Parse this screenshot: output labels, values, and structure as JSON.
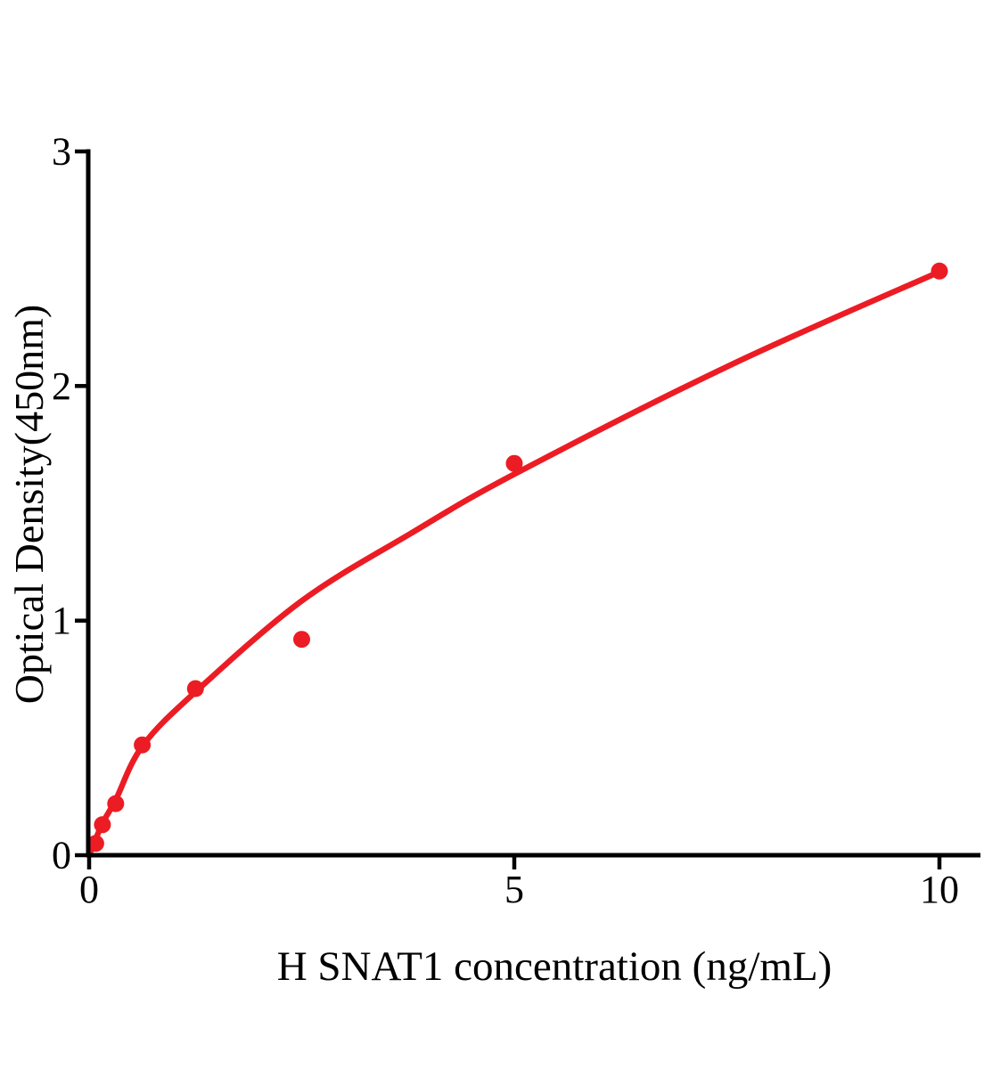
{
  "figure": {
    "background_color": "#ffffff",
    "accent_color": "#EC1C24",
    "axis_color": "#000000"
  },
  "chart_data": {
    "type": "scatter",
    "title": "",
    "xlabel": "H SNAT1 concentration (ng/mL)",
    "ylabel": "Optical Density(450nm)",
    "xlim": [
      0,
      10.5
    ],
    "ylim": [
      0,
      3
    ],
    "x_ticks": [
      0,
      5,
      10
    ],
    "y_ticks": [
      0,
      1,
      2,
      3
    ],
    "grid": false,
    "legend": "none",
    "series": [
      {
        "name": "standard points",
        "type": "scatter",
        "marker": "circle",
        "color": "#EC1C24",
        "x": [
          0.078,
          0.156,
          0.3125,
          0.625,
          1.25,
          2.5,
          5,
          10
        ],
        "y": [
          0.05,
          0.13,
          0.22,
          0.47,
          0.71,
          0.92,
          1.67,
          2.49
        ]
      },
      {
        "name": "fitted curve",
        "type": "line",
        "color": "#EC1C24",
        "x": [
          0,
          0.156,
          0.3125,
          0.625,
          1.25,
          2.5,
          3.77,
          5,
          7.55,
          10
        ],
        "y": [
          0,
          0.135,
          0.236,
          0.464,
          0.696,
          1.084,
          1.369,
          1.624,
          2.091,
          2.487
        ]
      }
    ]
  }
}
